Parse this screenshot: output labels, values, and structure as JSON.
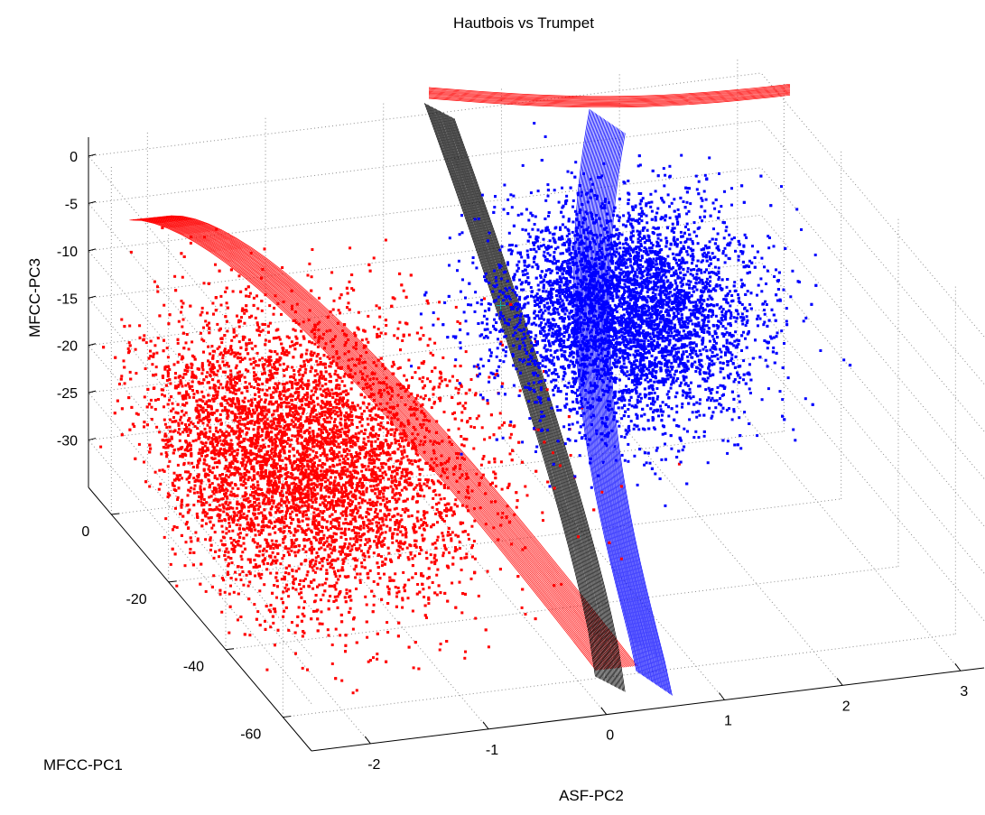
{
  "chart_data": {
    "type": "scatter",
    "title": "Hautbois vs Trumpet",
    "xlabel": "ASF-PC2",
    "ylabel": "MFCC-PC1",
    "zlabel": "MFCC-PC3",
    "x_ticks": [
      "-2",
      "-1",
      "0",
      "1",
      "2",
      "3"
    ],
    "y_ticks": [
      "0",
      "-20",
      "-40",
      "-60"
    ],
    "z_ticks": [
      "0",
      "-5",
      "-10",
      "-15",
      "-20",
      "-25",
      "-30"
    ],
    "xlim": [
      -2.5,
      3.2
    ],
    "ylim": [
      -70,
      8
    ],
    "zlim": [
      -35,
      2
    ],
    "grid": true,
    "series": [
      {
        "color": "#ff0000",
        "marker": "dot",
        "center": {
          "x": -1.6,
          "y": -25,
          "z": -22
        },
        "spread": {
          "x": 0.7,
          "y": 14,
          "z": 6
        }
      },
      {
        "color": "#0000ff",
        "marker": "dot",
        "center": {
          "x": 1.7,
          "y": -5,
          "z": -18
        },
        "spread": {
          "x": 0.5,
          "y": 9,
          "z": 5
        }
      }
    ],
    "surfaces": [
      {
        "color": "#ff0000"
      },
      {
        "color": "#000000"
      },
      {
        "color": "#0000ff"
      }
    ],
    "marked_points": [
      {
        "x": 0.8,
        "y": 0,
        "z": -18,
        "color": "#00c0c0"
      }
    ]
  }
}
